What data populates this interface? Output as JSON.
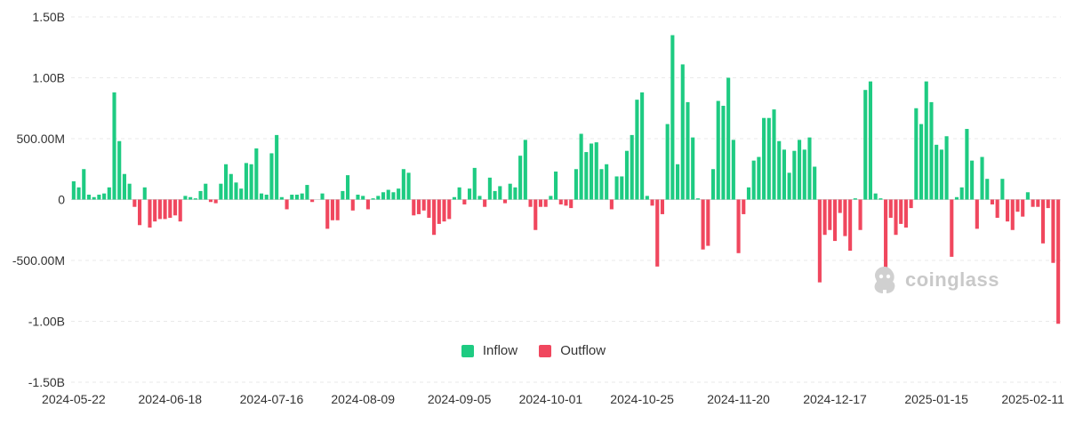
{
  "colors": {
    "inflow": "#1ecb82",
    "outflow": "#f0475e",
    "grid": "#e9e9e9",
    "zero_line": "#d6d6d6"
  },
  "watermark": {
    "text": "coinglass",
    "icon": "coinglass-logo-icon"
  },
  "chart_data": {
    "type": "bar",
    "ylim": [
      -1500000000,
      1500000000
    ],
    "yticks": [
      1500000000,
      1000000000,
      500000000,
      0,
      -500000000,
      -1000000000,
      -1500000000
    ],
    "ytick_labels": [
      "1.50B",
      "1.00B",
      "500.00M",
      "0",
      "-500.00M",
      "-1.00B",
      "-1.50B"
    ],
    "xtick_labels": [
      "2024-05-22",
      "2024-06-18",
      "2024-07-16",
      "2024-08-09",
      "2024-09-05",
      "2024-10-01",
      "2024-10-25",
      "2024-11-20",
      "2024-12-17",
      "2025-01-15",
      "2025-02-11"
    ],
    "xtick_index": [
      0,
      19,
      39,
      57,
      76,
      94,
      112,
      131,
      150,
      170,
      189
    ],
    "legend": [
      {
        "label": "Inflow",
        "color": "#1ecb82"
      },
      {
        "label": "Outflow",
        "color": "#f0475e"
      }
    ],
    "legend_position": "bottom-center",
    "grid": true,
    "values": [
      150,
      100,
      250,
      40,
      20,
      40,
      50,
      100,
      880,
      480,
      210,
      130,
      -60,
      -210,
      100,
      -230,
      -180,
      -160,
      -160,
      -150,
      -130,
      -180,
      30,
      20,
      10,
      70,
      130,
      -20,
      -30,
      130,
      290,
      210,
      140,
      90,
      300,
      290,
      420,
      50,
      40,
      380,
      530,
      20,
      -80,
      40,
      40,
      50,
      120,
      -20,
      0,
      50,
      -240,
      -170,
      -170,
      70,
      200,
      -90,
      40,
      30,
      -80,
      10,
      30,
      60,
      80,
      60,
      90,
      250,
      220,
      -130,
      -120,
      -90,
      -150,
      -290,
      -200,
      -180,
      -160,
      20,
      100,
      -40,
      90,
      260,
      30,
      -60,
      180,
      70,
      110,
      -30,
      130,
      100,
      360,
      490,
      -60,
      -250,
      -60,
      -60,
      30,
      230,
      -40,
      -50,
      -70,
      250,
      540,
      390,
      460,
      470,
      250,
      290,
      -80,
      190,
      190,
      400,
      530,
      820,
      880,
      30,
      -50,
      -550,
      -120,
      620,
      1350,
      290,
      1110,
      800,
      510,
      10,
      -410,
      -380,
      250,
      810,
      770,
      1000,
      490,
      -440,
      -120,
      100,
      320,
      350,
      670,
      670,
      740,
      480,
      410,
      220,
      400,
      490,
      410,
      510,
      270,
      -680,
      -290,
      -250,
      -340,
      -110,
      -300,
      -420,
      10,
      -250,
      900,
      970,
      50,
      10,
      -580,
      -150,
      -290,
      -200,
      -230,
      -70,
      750,
      620,
      970,
      800,
      450,
      410,
      520,
      -470,
      20,
      100,
      580,
      320,
      -240,
      350,
      170,
      -40,
      -150,
      170,
      -180,
      -250,
      -100,
      -140,
      60,
      -60,
      -60,
      -360,
      -70,
      -520,
      -1020
    ]
  }
}
